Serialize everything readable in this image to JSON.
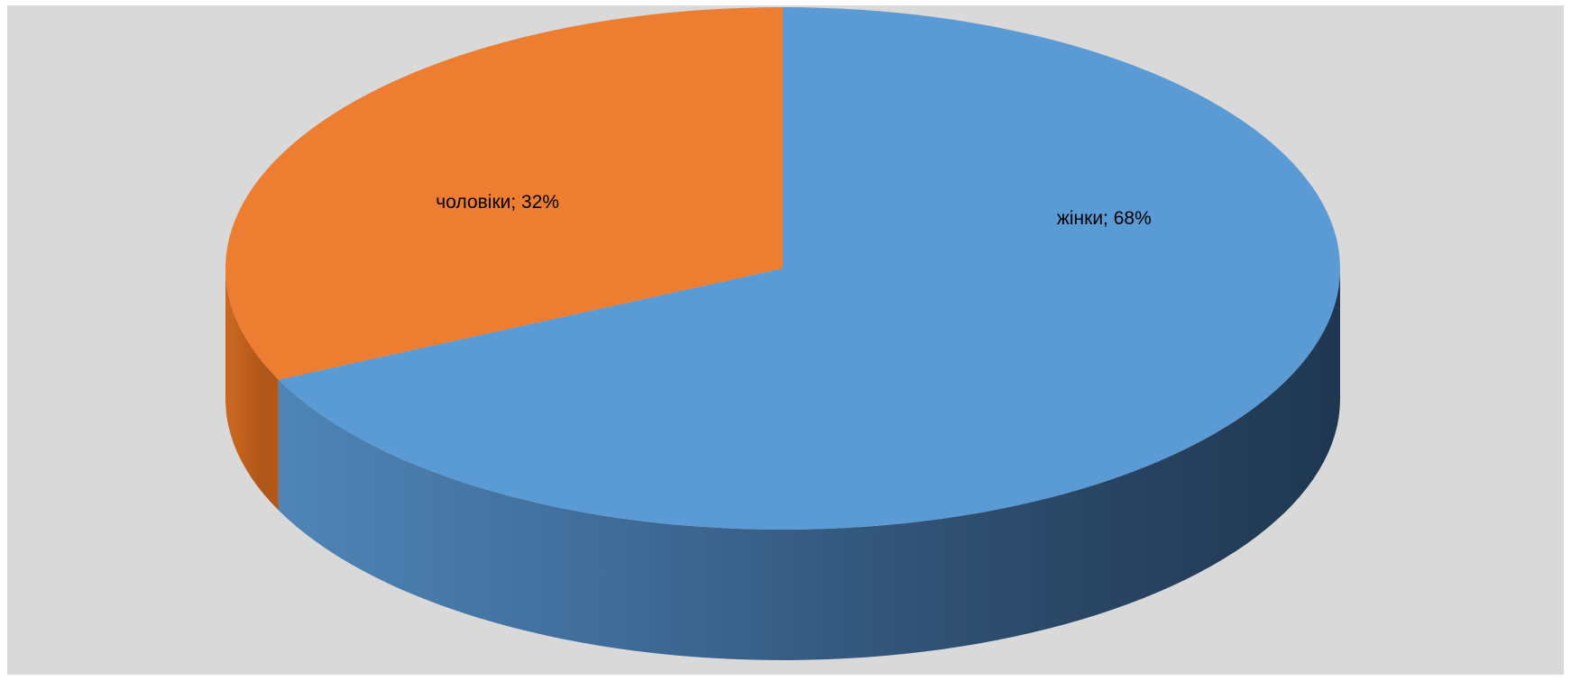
{
  "chart_data": {
    "type": "pie",
    "style": "3d",
    "title": "",
    "legend": "none",
    "start_angle_deg": 90,
    "direction": "clockwise",
    "slices": [
      {
        "label": "жінки",
        "value": 68,
        "display": "жінки; 68%",
        "color": "#5B9BD5"
      },
      {
        "label": "чоловіки",
        "value": 32,
        "display": "чоловіки; 32%",
        "color": "#ED7D31"
      }
    ],
    "background": "#D9D9D9"
  }
}
